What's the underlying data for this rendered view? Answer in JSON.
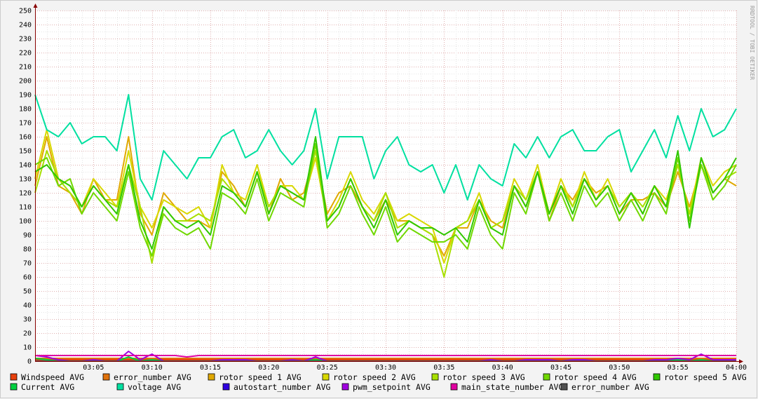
{
  "chart_data": {
    "type": "line",
    "title": "",
    "watermark": "RRDTOOL / TOBI OETIKER",
    "xlim": [
      "03:00",
      "04:00"
    ],
    "ylim": [
      0,
      250
    ],
    "grid": true,
    "legend_placement": "bottom",
    "y_ticks": [
      0,
      10,
      20,
      30,
      40,
      50,
      60,
      70,
      80,
      90,
      100,
      110,
      120,
      130,
      140,
      150,
      160,
      170,
      180,
      190,
      200,
      210,
      220,
      230,
      240,
      250
    ],
    "x_ticks": [
      "03:05",
      "03:10",
      "03:15",
      "03:20",
      "03:25",
      "03:30",
      "03:35",
      "03:40",
      "03:45",
      "03:50",
      "03:55",
      "04:00"
    ],
    "x_minutes_step": 1,
    "series": [
      {
        "name": "Windspeed AVG",
        "color": "#E8400C",
        "values": [
          1,
          1,
          1,
          1,
          1,
          1,
          1,
          1,
          1,
          1,
          1,
          1,
          1,
          1,
          1,
          1,
          1,
          1,
          1,
          1,
          1,
          1,
          1,
          1,
          1,
          1,
          1,
          1,
          1,
          1,
          1,
          1,
          1,
          1,
          1,
          1,
          1,
          1,
          1,
          1,
          1,
          1,
          1,
          1,
          1,
          1,
          1,
          1,
          1,
          1,
          1,
          1,
          1,
          1,
          1,
          1,
          1,
          1,
          1,
          1,
          1
        ]
      },
      {
        "name": "error_number AVG",
        "color": "#E0720C",
        "values": [
          2,
          2,
          2,
          2,
          2,
          2,
          2,
          2,
          2,
          2,
          2,
          2,
          2,
          2,
          2,
          2,
          2,
          2,
          2,
          2,
          2,
          2,
          2,
          2,
          2,
          2,
          2,
          2,
          2,
          2,
          2,
          2,
          2,
          2,
          2,
          2,
          2,
          2,
          2,
          2,
          2,
          2,
          2,
          2,
          2,
          2,
          2,
          2,
          2,
          2,
          2,
          2,
          2,
          2,
          2,
          2,
          2,
          2,
          2,
          2,
          2
        ]
      },
      {
        "name": "rotor speed 1 AVG",
        "color": "#E0A800",
        "values": [
          125,
          160,
          125,
          120,
          105,
          130,
          115,
          115,
          160,
          105,
          90,
          120,
          110,
          100,
          100,
          95,
          135,
          125,
          110,
          135,
          105,
          130,
          115,
          120,
          150,
          105,
          120,
          125,
          110,
          100,
          115,
          100,
          100,
          95,
          90,
          75,
          95,
          95,
          115,
          100,
          95,
          125,
          110,
          135,
          100,
          125,
          115,
          130,
          120,
          125,
          105,
          115,
          115,
          120,
          110,
          135,
          110,
          140,
          120,
          130,
          125
        ]
      },
      {
        "name": "rotor speed 2 AVG",
        "color": "#D8D800",
        "values": [
          130,
          165,
          130,
          125,
          110,
          130,
          120,
          110,
          150,
          110,
          95,
          115,
          110,
          105,
          110,
          95,
          140,
          120,
          115,
          140,
          110,
          125,
          125,
          115,
          145,
          100,
          115,
          135,
          115,
          105,
          120,
          100,
          105,
          100,
          95,
          70,
          95,
          100,
          120,
          95,
          100,
          130,
          115,
          140,
          105,
          130,
          110,
          135,
          115,
          130,
          110,
          120,
          105,
          125,
          115,
          140,
          105,
          145,
          125,
          135,
          140
        ]
      },
      {
        "name": "rotor speed 3 AVG",
        "color": "#A8E000",
        "values": [
          120,
          150,
          130,
          120,
          110,
          125,
          115,
          110,
          140,
          110,
          70,
          110,
          100,
          100,
          105,
          100,
          130,
          120,
          110,
          135,
          110,
          125,
          120,
          115,
          150,
          100,
          110,
          130,
          110,
          100,
          120,
          95,
          100,
          95,
          90,
          60,
          95,
          100,
          115,
          95,
          100,
          125,
          115,
          135,
          105,
          125,
          110,
          130,
          115,
          125,
          110,
          120,
          110,
          125,
          110,
          140,
          105,
          140,
          120,
          130,
          135
        ]
      },
      {
        "name": "rotor speed 4 AVG",
        "color": "#70D800",
        "values": [
          140,
          145,
          125,
          130,
          105,
          120,
          110,
          100,
          135,
          95,
          75,
          105,
          95,
          90,
          95,
          80,
          120,
          115,
          105,
          130,
          100,
          120,
          115,
          110,
          155,
          95,
          105,
          125,
          105,
          90,
          110,
          85,
          95,
          90,
          85,
          85,
          90,
          80,
          110,
          90,
          80,
          120,
          105,
          135,
          100,
          120,
          100,
          125,
          110,
          120,
          100,
          115,
          100,
          120,
          105,
          145,
          100,
          140,
          115,
          125,
          140
        ]
      },
      {
        "name": "rotor speed 5 AVG",
        "color": "#30C800",
        "values": [
          135,
          140,
          130,
          125,
          110,
          125,
          115,
          105,
          140,
          100,
          80,
          110,
          100,
          95,
          100,
          90,
          125,
          120,
          110,
          135,
          105,
          125,
          120,
          115,
          160,
          100,
          110,
          130,
          110,
          95,
          115,
          90,
          100,
          95,
          95,
          90,
          95,
          85,
          115,
          95,
          90,
          125,
          110,
          135,
          105,
          125,
          105,
          130,
          115,
          125,
          105,
          120,
          105,
          125,
          110,
          150,
          95,
          145,
          120,
          130,
          145
        ]
      },
      {
        "name": "Current AVG",
        "color": "#00D040",
        "values": [
          2,
          1,
          0,
          0,
          0,
          0,
          0,
          0,
          3,
          0,
          1,
          0,
          0,
          0,
          0,
          0,
          0,
          0,
          0,
          0,
          0,
          0,
          0,
          0,
          1,
          0,
          0,
          0,
          0,
          0,
          0,
          0,
          0,
          0,
          0,
          0,
          0,
          0,
          0,
          0,
          0,
          0,
          0,
          0,
          0,
          0,
          1,
          0,
          0,
          0,
          0,
          0,
          0,
          0,
          0,
          1,
          0,
          1,
          0,
          0,
          0
        ]
      },
      {
        "name": "voltage AVG",
        "color": "#00E0A0",
        "values": [
          190,
          165,
          160,
          170,
          155,
          160,
          160,
          150,
          190,
          130,
          115,
          150,
          140,
          130,
          145,
          145,
          160,
          165,
          145,
          150,
          165,
          150,
          140,
          150,
          180,
          130,
          160,
          160,
          160,
          130,
          150,
          160,
          140,
          135,
          140,
          120,
          140,
          115,
          140,
          130,
          125,
          155,
          145,
          160,
          145,
          160,
          165,
          150,
          150,
          160,
          165,
          135,
          150,
          165,
          145,
          175,
          150,
          180,
          160,
          165,
          180
        ]
      },
      {
        "name": "autostart_number AVG",
        "color": "#3000E0",
        "values": [
          0,
          0,
          0,
          0,
          0,
          0,
          0,
          0,
          0,
          0,
          0,
          0,
          0,
          0,
          0,
          0,
          0,
          0,
          0,
          0,
          0,
          0,
          0,
          0,
          0,
          0,
          0,
          0,
          0,
          0,
          0,
          0,
          0,
          0,
          0,
          0,
          0,
          0,
          0,
          0,
          0,
          0,
          0,
          0,
          0,
          0,
          0,
          0,
          0,
          0,
          0,
          0,
          0,
          0,
          0,
          0,
          0,
          0,
          0,
          0,
          0
        ]
      },
      {
        "name": "pwm_setpoint AVG",
        "color": "#A000E0",
        "values": [
          4,
          3,
          1,
          0,
          0,
          1,
          0,
          0,
          7,
          1,
          5,
          0,
          0,
          0,
          0,
          0,
          1,
          1,
          1,
          0,
          0,
          0,
          1,
          0,
          3,
          0,
          0,
          0,
          0,
          0,
          0,
          0,
          0,
          0,
          0,
          0,
          0,
          0,
          0,
          1,
          0,
          0,
          1,
          1,
          1,
          0,
          1,
          1,
          0,
          0,
          0,
          0,
          0,
          1,
          1,
          2,
          1,
          5,
          1,
          1,
          1
        ]
      },
      {
        "name": "main_state_number AVG",
        "color": "#E000A0",
        "values": [
          4,
          4,
          4,
          4,
          4,
          4,
          4,
          4,
          4,
          4,
          4,
          4,
          4,
          3,
          4,
          4,
          4,
          4,
          4,
          4,
          4,
          4,
          4,
          4,
          4,
          4,
          4,
          4,
          4,
          4,
          4,
          4,
          4,
          4,
          4,
          4,
          4,
          4,
          4,
          4,
          4,
          4,
          4,
          4,
          4,
          4,
          4,
          4,
          4,
          4,
          4,
          4,
          4,
          4,
          4,
          4,
          4,
          4,
          4,
          4,
          4
        ]
      },
      {
        "name": "error_number AVG",
        "color": "#505050",
        "values": [
          0,
          0,
          0,
          0,
          0,
          0,
          0,
          0,
          0,
          0,
          0,
          0,
          0,
          0,
          0,
          0,
          0,
          0,
          0,
          0,
          0,
          0,
          0,
          0,
          0,
          0,
          0,
          0,
          0,
          0,
          0,
          0,
          0,
          0,
          0,
          0,
          0,
          0,
          0,
          0,
          0,
          0,
          0,
          0,
          0,
          0,
          0,
          0,
          0,
          0,
          0,
          0,
          0,
          0,
          0,
          0,
          0,
          0,
          0,
          0,
          0
        ]
      }
    ]
  }
}
